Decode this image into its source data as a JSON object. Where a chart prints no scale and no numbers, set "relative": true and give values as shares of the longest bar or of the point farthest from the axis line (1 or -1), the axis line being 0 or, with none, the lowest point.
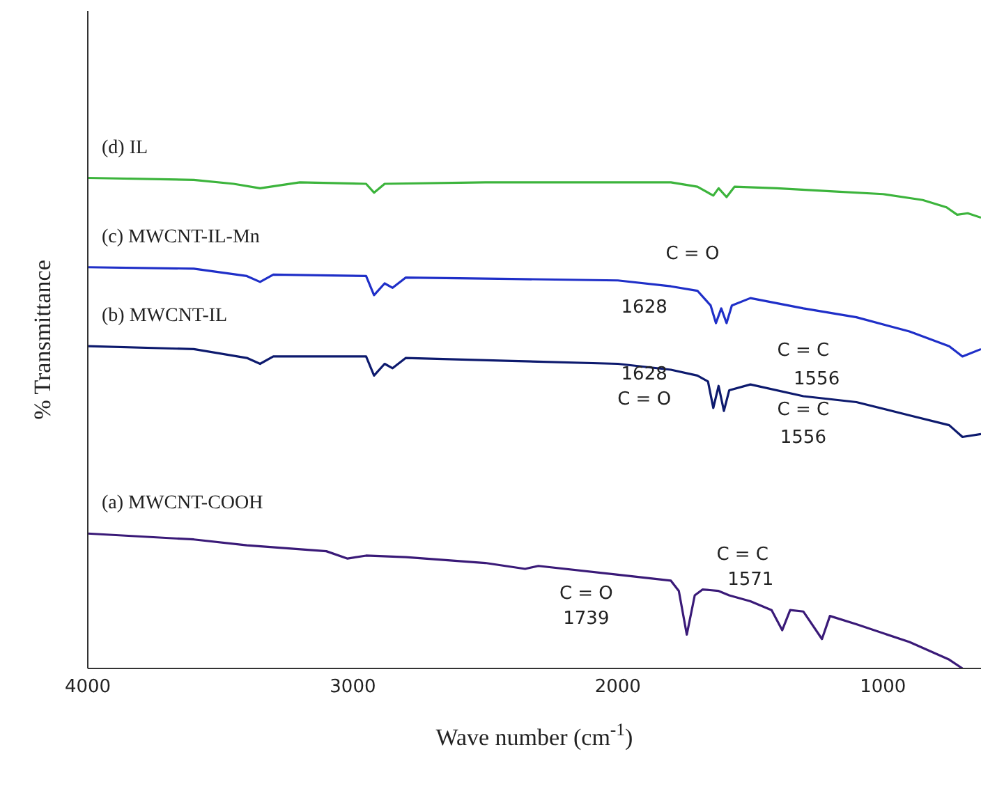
{
  "chart_data": {
    "type": "line",
    "relative": true,
    "xlabel": "Wave number (cm$^{-1}$)",
    "ylabel": "% Transmittance",
    "xlim": [
      4000,
      630
    ],
    "xticks": [
      4000,
      3000,
      2000,
      1000
    ],
    "legend": false,
    "grid": false,
    "series": [
      {
        "name": "(d) IL",
        "color": "#3cb43c",
        "x": [
          4000,
          3600,
          3450,
          3350,
          3200,
          2950,
          2920,
          2880,
          2500,
          2000,
          1800,
          1700,
          1640,
          1620,
          1590,
          1560,
          1400,
          1200,
          1000,
          850,
          760,
          720,
          680,
          630
        ],
        "values": [
          1.0,
          0.996,
          0.988,
          0.979,
          0.991,
          0.988,
          0.97,
          0.988,
          0.991,
          0.991,
          0.991,
          0.982,
          0.964,
          0.979,
          0.961,
          0.982,
          0.979,
          0.973,
          0.967,
          0.955,
          0.94,
          0.925,
          0.928,
          0.919
        ]
      },
      {
        "name": "(c) MWCNT-IL-Mn",
        "color": "#1f2fc8",
        "x": [
          4000,
          3600,
          3400,
          3350,
          3300,
          2950,
          2920,
          2880,
          2850,
          2800,
          2400,
          2000,
          1800,
          1700,
          1650,
          1630,
          1610,
          1590,
          1570,
          1500,
          1300,
          1100,
          900,
          750,
          700,
          630
        ],
        "values": [
          0.818,
          0.815,
          0.8,
          0.788,
          0.803,
          0.8,
          0.761,
          0.785,
          0.776,
          0.797,
          0.794,
          0.791,
          0.779,
          0.77,
          0.74,
          0.704,
          0.734,
          0.704,
          0.74,
          0.755,
          0.734,
          0.716,
          0.687,
          0.657,
          0.636,
          0.651
        ]
      },
      {
        "name": "(b) MWCNT-IL",
        "color": "#0d1a6e",
        "x": [
          4000,
          3600,
          3400,
          3350,
          3300,
          2950,
          2920,
          2880,
          2850,
          2800,
          2400,
          2000,
          1800,
          1700,
          1660,
          1640,
          1620,
          1600,
          1580,
          1500,
          1300,
          1100,
          900,
          750,
          700,
          630
        ],
        "values": [
          0.657,
          0.651,
          0.633,
          0.621,
          0.636,
          0.636,
          0.597,
          0.621,
          0.612,
          0.633,
          0.627,
          0.621,
          0.609,
          0.597,
          0.585,
          0.531,
          0.576,
          0.525,
          0.567,
          0.579,
          0.555,
          0.543,
          0.516,
          0.496,
          0.472,
          0.478
        ]
      },
      {
        "name": "(a) MWCNT-COOH",
        "color": "#3a1a78",
        "x": [
          4000,
          3600,
          3400,
          3100,
          3020,
          2950,
          2800,
          2500,
          2350,
          2300,
          2000,
          1800,
          1770,
          1740,
          1710,
          1680,
          1620,
          1580,
          1500,
          1420,
          1380,
          1350,
          1300,
          1230,
          1200,
          1100,
          900,
          750,
          700
        ],
        "values": [
          0.275,
          0.263,
          0.251,
          0.239,
          0.224,
          0.23,
          0.227,
          0.215,
          0.203,
          0.209,
          0.191,
          0.179,
          0.158,
          0.069,
          0.149,
          0.161,
          0.158,
          0.149,
          0.137,
          0.119,
          0.078,
          0.119,
          0.116,
          0.06,
          0.107,
          0.09,
          0.054,
          0.018,
          0.0
        ]
      }
    ],
    "annotations": [
      "C = O",
      "1628",
      "C = C",
      "1556",
      "1628",
      "C = O",
      "C = C",
      "1556",
      "C = C",
      "1571",
      "C = O",
      "1739"
    ]
  }
}
